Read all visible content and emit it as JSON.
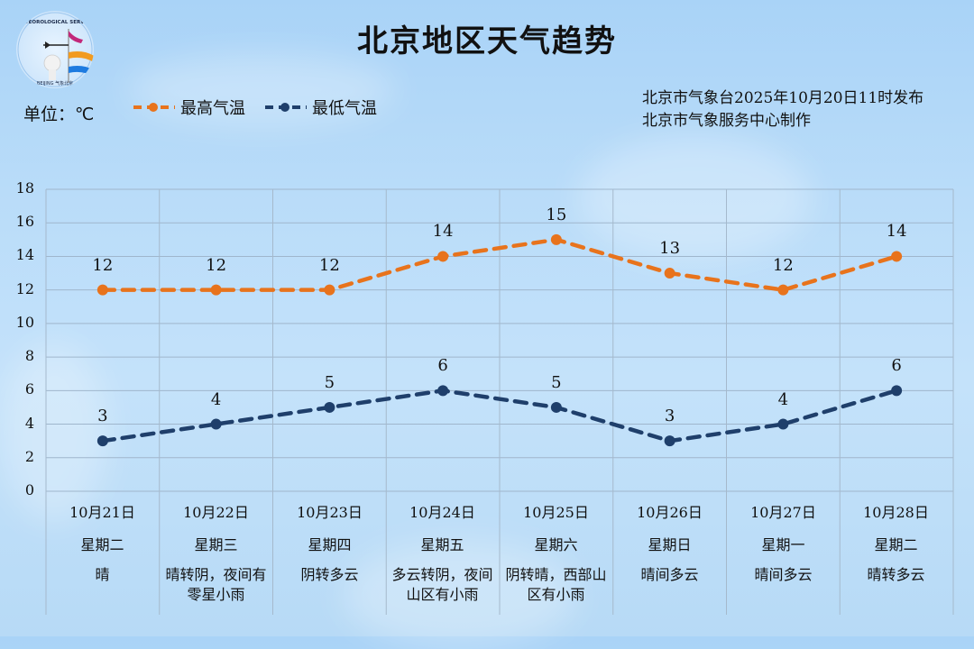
{
  "header": {
    "title": "北京地区天气趋势",
    "unit_label": "单位：℃",
    "legend": [
      {
        "label": "最高气温",
        "color": "#e8731c"
      },
      {
        "label": "最低气温",
        "color": "#1f3f6b"
      }
    ],
    "publisher_line1": "北京市气象台2025年10月20日11时发布",
    "publisher_line2": "北京市气象服务中心制作",
    "logo": {
      "top_text": "METEOROLOGICAL SERVICE",
      "bottom_text": "BEIJING 气象北京"
    }
  },
  "days": [
    {
      "date": "10月21日",
      "weekday": "星期二",
      "weather": "晴"
    },
    {
      "date": "10月22日",
      "weekday": "星期三",
      "weather": "晴转阴，夜间有零星小雨"
    },
    {
      "date": "10月23日",
      "weekday": "星期四",
      "weather": "阴转多云"
    },
    {
      "date": "10月24日",
      "weekday": "星期五",
      "weather": "多云转阴，夜间山区有小雨"
    },
    {
      "date": "10月25日",
      "weekday": "星期六",
      "weather": "阴转晴，西部山区有小雨"
    },
    {
      "date": "10月26日",
      "weekday": "星期日",
      "weather": "晴间多云"
    },
    {
      "date": "10月27日",
      "weekday": "星期一",
      "weather": "晴间多云"
    },
    {
      "date": "10月28日",
      "weekday": "星期二",
      "weather": "晴转多云"
    }
  ],
  "chart_data": {
    "type": "line",
    "title": "北京地区天气趋势",
    "xlabel": "",
    "ylabel": "单位：℃",
    "categories": [
      "10月21日",
      "10月22日",
      "10月23日",
      "10月24日",
      "10月25日",
      "10月26日",
      "10月27日",
      "10月28日"
    ],
    "series": [
      {
        "name": "最高气温",
        "color": "#e8731c",
        "style": "dashed",
        "values": [
          12,
          12,
          12,
          14,
          15,
          13,
          12,
          14
        ]
      },
      {
        "name": "最低气温",
        "color": "#1f3f6b",
        "style": "dashed",
        "values": [
          3,
          4,
          5,
          6,
          5,
          3,
          4,
          6
        ]
      }
    ],
    "ylim": [
      0,
      18
    ],
    "yticks": [
      0,
      2,
      4,
      6,
      8,
      10,
      12,
      14,
      16,
      18
    ],
    "grid": true,
    "data_labels": true,
    "legend_position": "top-left"
  }
}
